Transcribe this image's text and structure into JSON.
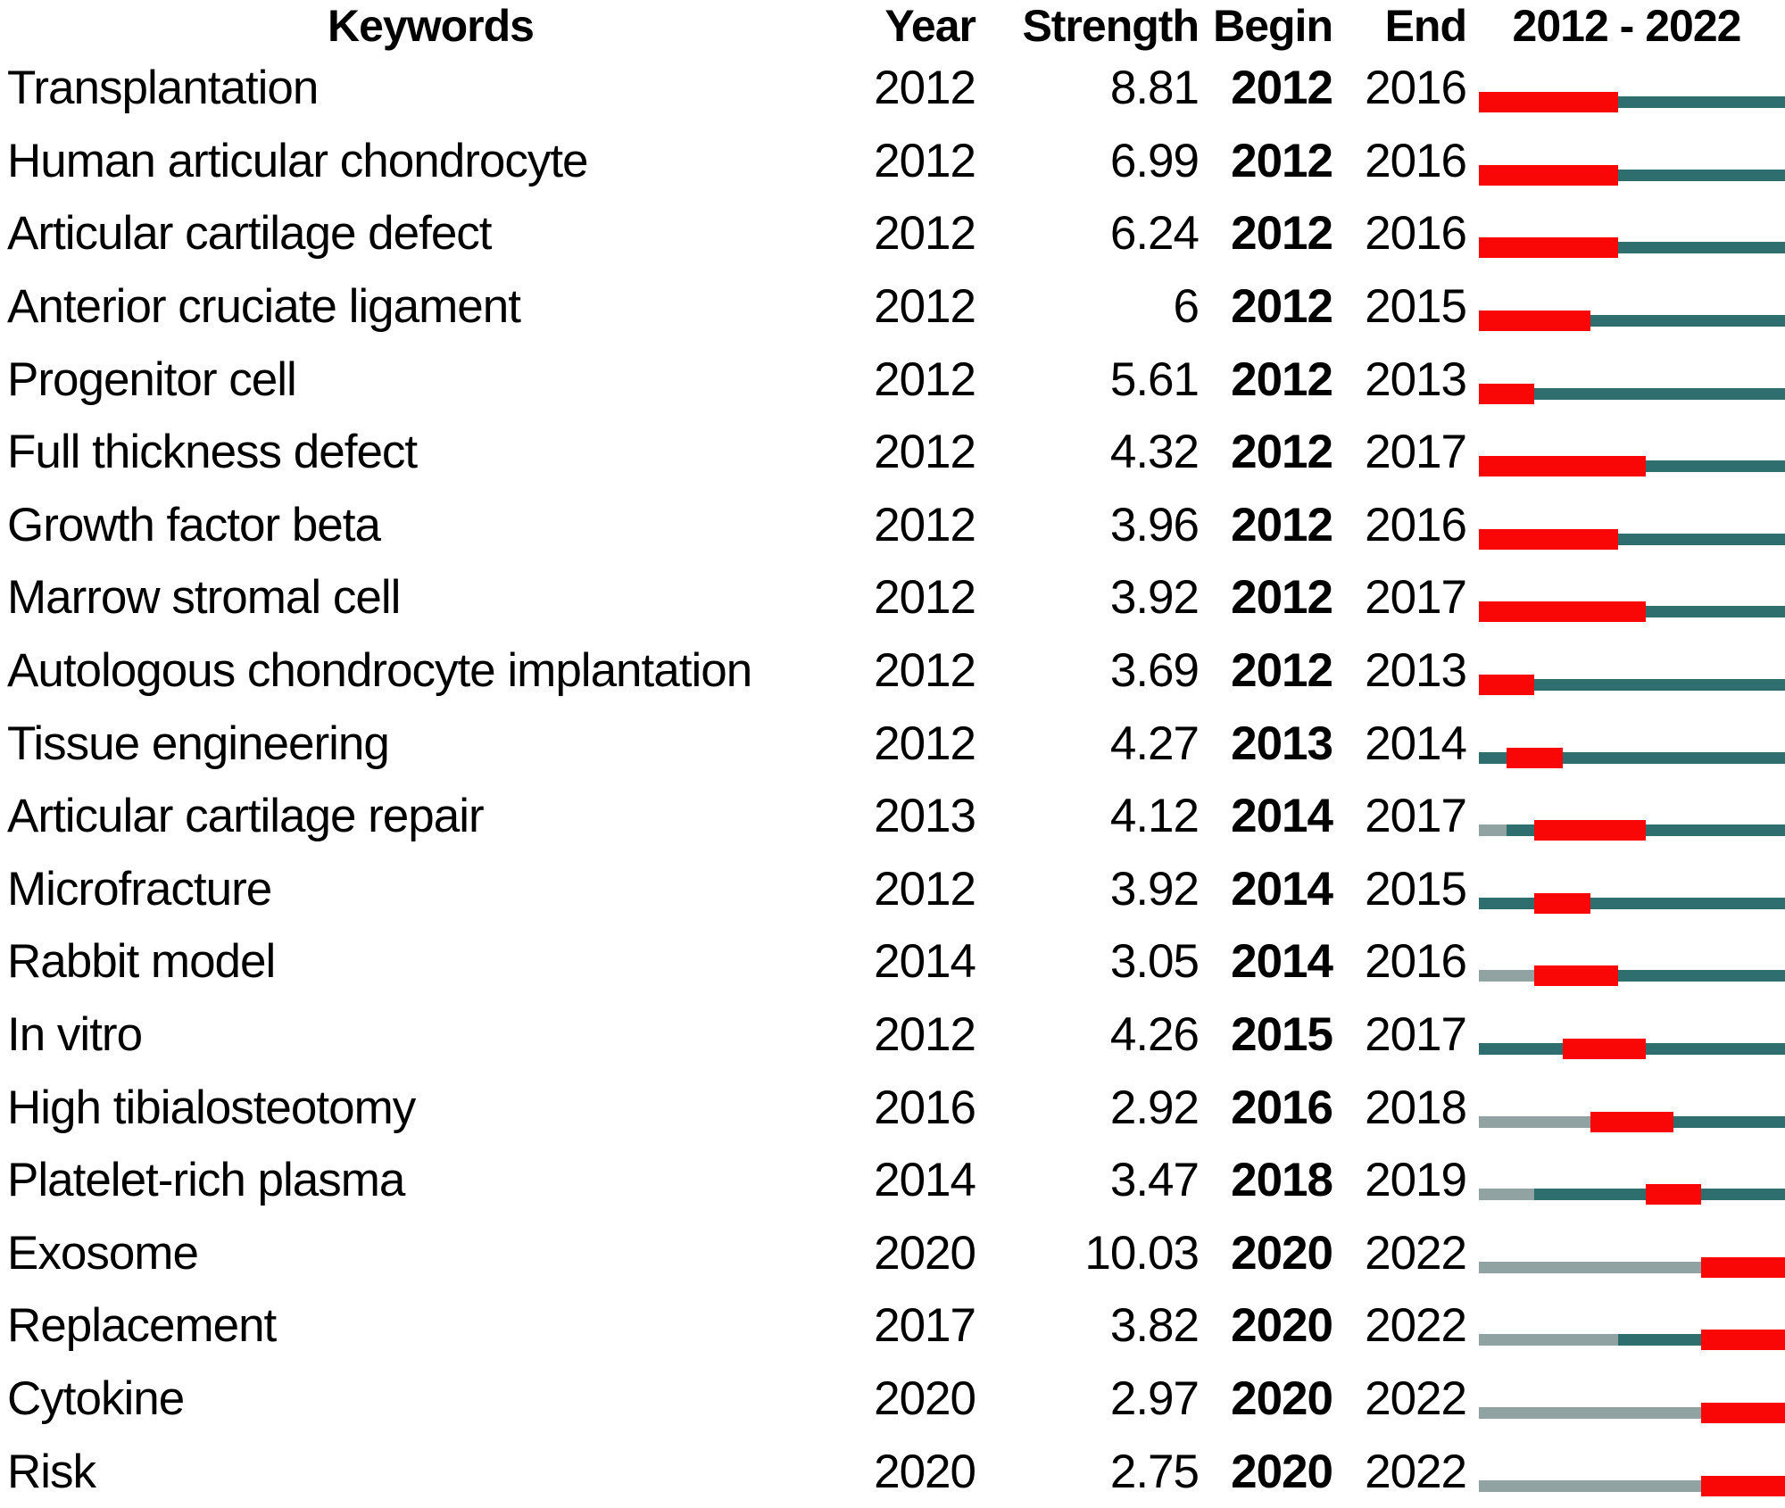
{
  "colors": {
    "burst": "#f90606",
    "active": "#2e6e6f",
    "inactive": "#90a2a2",
    "text": "#000000",
    "background": "#ffffff"
  },
  "chart_data": {
    "type": "table",
    "columns": [
      "Keywords",
      "Year",
      "Strength",
      "Begin",
      "End",
      "2012 - 2022"
    ],
    "x_range": [
      2012,
      2022
    ],
    "legend": {
      "burst": "citation burst years (red)",
      "active": "keyword active years (dark teal)",
      "inactive": "years before keyword appeared (gray)"
    },
    "rows": [
      {
        "keyword": "Transplantation",
        "year": "2012",
        "strength": "8.81",
        "begin": "2012",
        "end": "2016",
        "segments": [
          {
            "kind": "burst",
            "from": 2012,
            "to": 2016
          },
          {
            "kind": "active",
            "from": 2017,
            "to": 2022
          }
        ]
      },
      {
        "keyword": "Human articular chondrocyte",
        "year": "2012",
        "strength": "6.99",
        "begin": "2012",
        "end": "2016",
        "segments": [
          {
            "kind": "burst",
            "from": 2012,
            "to": 2016
          },
          {
            "kind": "active",
            "from": 2017,
            "to": 2022
          }
        ]
      },
      {
        "keyword": "Articular cartilage defect",
        "year": "2012",
        "strength": "6.24",
        "begin": "2012",
        "end": "2016",
        "segments": [
          {
            "kind": "burst",
            "from": 2012,
            "to": 2016
          },
          {
            "kind": "active",
            "from": 2017,
            "to": 2022
          }
        ]
      },
      {
        "keyword": "Anterior cruciate ligament",
        "year": "2012",
        "strength": "6",
        "begin": "2012",
        "end": "2015",
        "segments": [
          {
            "kind": "burst",
            "from": 2012,
            "to": 2015
          },
          {
            "kind": "active",
            "from": 2016,
            "to": 2022
          }
        ]
      },
      {
        "keyword": "Progenitor cell",
        "year": "2012",
        "strength": "5.61",
        "begin": "2012",
        "end": "2013",
        "segments": [
          {
            "kind": "burst",
            "from": 2012,
            "to": 2013
          },
          {
            "kind": "active",
            "from": 2014,
            "to": 2022
          }
        ]
      },
      {
        "keyword": "Full thickness defect",
        "year": "2012",
        "strength": "4.32",
        "begin": "2012",
        "end": "2017",
        "segments": [
          {
            "kind": "burst",
            "from": 2012,
            "to": 2017
          },
          {
            "kind": "active",
            "from": 2018,
            "to": 2022
          }
        ]
      },
      {
        "keyword": "Growth factor beta",
        "year": "2012",
        "strength": "3.96",
        "begin": "2012",
        "end": "2016",
        "segments": [
          {
            "kind": "burst",
            "from": 2012,
            "to": 2016
          },
          {
            "kind": "active",
            "from": 2017,
            "to": 2022
          }
        ]
      },
      {
        "keyword": "Marrow stromal cell",
        "year": "2012",
        "strength": "3.92",
        "begin": "2012",
        "end": "2017",
        "segments": [
          {
            "kind": "burst",
            "from": 2012,
            "to": 2017
          },
          {
            "kind": "active",
            "from": 2018,
            "to": 2022
          }
        ]
      },
      {
        "keyword": "Autologous chondrocyte implantation",
        "year": "2012",
        "strength": "3.69",
        "begin": "2012",
        "end": "2013",
        "segments": [
          {
            "kind": "burst",
            "from": 2012,
            "to": 2013
          },
          {
            "kind": "active",
            "from": 2014,
            "to": 2022
          }
        ]
      },
      {
        "keyword": "Tissue engineering",
        "year": "2012",
        "strength": "4.27",
        "begin": "2013",
        "end": "2014",
        "segments": [
          {
            "kind": "active",
            "from": 2012,
            "to": 2012
          },
          {
            "kind": "burst",
            "from": 2013,
            "to": 2014
          },
          {
            "kind": "active",
            "from": 2015,
            "to": 2022
          }
        ]
      },
      {
        "keyword": "Articular cartilage repair",
        "year": "2013",
        "strength": "4.12",
        "begin": "2014",
        "end": "2017",
        "segments": [
          {
            "kind": "inactive",
            "from": 2012,
            "to": 2012
          },
          {
            "kind": "active",
            "from": 2013,
            "to": 2013
          },
          {
            "kind": "burst",
            "from": 2014,
            "to": 2017
          },
          {
            "kind": "active",
            "from": 2018,
            "to": 2022
          }
        ]
      },
      {
        "keyword": "Microfracture",
        "year": "2012",
        "strength": "3.92",
        "begin": "2014",
        "end": "2015",
        "segments": [
          {
            "kind": "active",
            "from": 2012,
            "to": 2013
          },
          {
            "kind": "burst",
            "from": 2014,
            "to": 2015
          },
          {
            "kind": "active",
            "from": 2016,
            "to": 2022
          }
        ]
      },
      {
        "keyword": "Rabbit model",
        "year": "2014",
        "strength": "3.05",
        "begin": "2014",
        "end": "2016",
        "segments": [
          {
            "kind": "inactive",
            "from": 2012,
            "to": 2013
          },
          {
            "kind": "burst",
            "from": 2014,
            "to": 2016
          },
          {
            "kind": "active",
            "from": 2017,
            "to": 2022
          }
        ]
      },
      {
        "keyword": "In vitro",
        "year": "2012",
        "strength": "4.26",
        "begin": "2015",
        "end": "2017",
        "segments": [
          {
            "kind": "active",
            "from": 2012,
            "to": 2014
          },
          {
            "kind": "burst",
            "from": 2015,
            "to": 2017
          },
          {
            "kind": "active",
            "from": 2018,
            "to": 2022
          }
        ]
      },
      {
        "keyword": "High tibialosteotomy",
        "year": "2016",
        "strength": "2.92",
        "begin": "2016",
        "end": "2018",
        "segments": [
          {
            "kind": "inactive",
            "from": 2012,
            "to": 2015
          },
          {
            "kind": "burst",
            "from": 2016,
            "to": 2018
          },
          {
            "kind": "active",
            "from": 2019,
            "to": 2022
          }
        ]
      },
      {
        "keyword": "Platelet-rich plasma",
        "year": "2014",
        "strength": "3.47",
        "begin": "2018",
        "end": "2019",
        "segments": [
          {
            "kind": "inactive",
            "from": 2012,
            "to": 2013
          },
          {
            "kind": "active",
            "from": 2014,
            "to": 2017
          },
          {
            "kind": "burst",
            "from": 2018,
            "to": 2019
          },
          {
            "kind": "active",
            "from": 2020,
            "to": 2022
          }
        ]
      },
      {
        "keyword": "Exosome",
        "year": "2020",
        "strength": "10.03",
        "begin": "2020",
        "end": "2022",
        "segments": [
          {
            "kind": "inactive",
            "from": 2012,
            "to": 2019
          },
          {
            "kind": "burst",
            "from": 2020,
            "to": 2022
          }
        ]
      },
      {
        "keyword": "Replacement",
        "year": "2017",
        "strength": "3.82",
        "begin": "2020",
        "end": "2022",
        "segments": [
          {
            "kind": "inactive",
            "from": 2012,
            "to": 2016
          },
          {
            "kind": "active",
            "from": 2017,
            "to": 2019
          },
          {
            "kind": "burst",
            "from": 2020,
            "to": 2022
          }
        ]
      },
      {
        "keyword": "Cytokine",
        "year": "2020",
        "strength": "2.97",
        "begin": "2020",
        "end": "2022",
        "segments": [
          {
            "kind": "inactive",
            "from": 2012,
            "to": 2019
          },
          {
            "kind": "burst",
            "from": 2020,
            "to": 2022
          }
        ]
      },
      {
        "keyword": "Risk",
        "year": "2020",
        "strength": "2.75",
        "begin": "2020",
        "end": "2022",
        "segments": [
          {
            "kind": "inactive",
            "from": 2012,
            "to": 2019
          },
          {
            "kind": "burst",
            "from": 2020,
            "to": 2022
          }
        ]
      }
    ]
  }
}
